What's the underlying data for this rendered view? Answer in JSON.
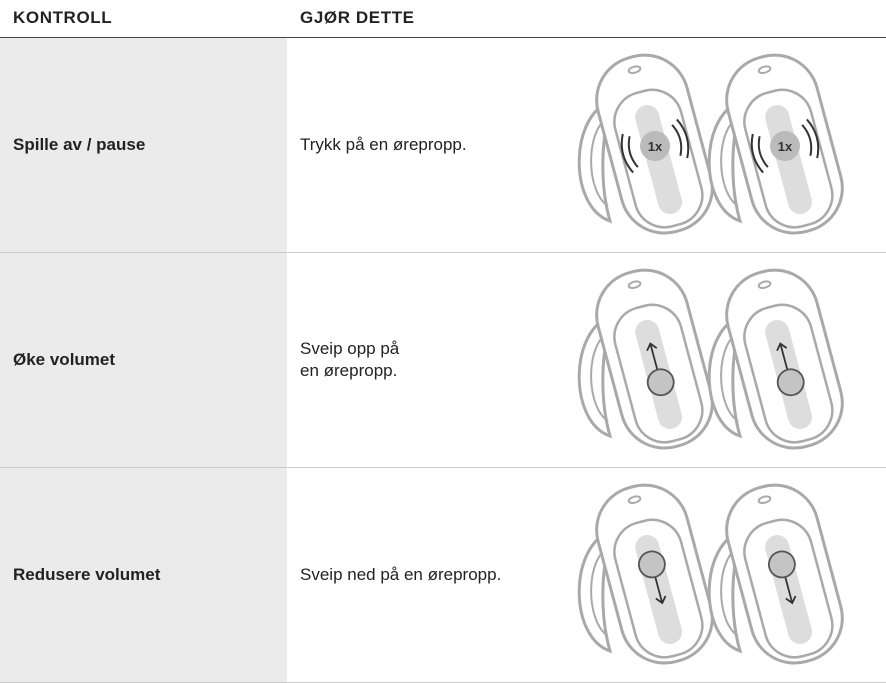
{
  "header": {
    "columns": [
      "KONTROLL",
      "GJØR DETTE"
    ]
  },
  "table": {
    "rows": [
      {
        "control": "Spille av / pause",
        "action": [
          "Trykk på en ørepropp."
        ],
        "badge": "1x"
      },
      {
        "control": "Øke volumet",
        "action": [
          "Sveip opp på",
          "en ørepropp."
        ]
      },
      {
        "control": "Redusere volumet",
        "action": [
          "Sveip ned på en ørepropp."
        ]
      }
    ]
  }
}
